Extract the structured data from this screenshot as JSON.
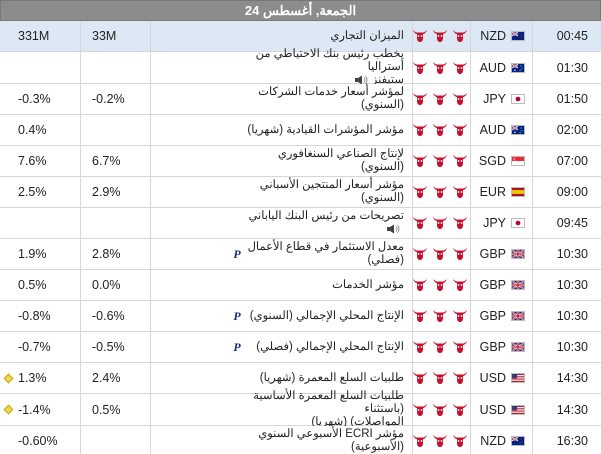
{
  "day_header": "الجمعة, أغسطس 24",
  "colors": {
    "bull_active": "#c8102e",
    "bull_inactive": "#d0d0d0"
  },
  "rows": [
    {
      "time": "00:45",
      "currency": "NZD",
      "flag": "nz-flag-icon",
      "importance": 3,
      "event": [
        "الميزان التجاري"
      ],
      "previous": "331M",
      "forecast": "33M",
      "prelim": false,
      "speech": false,
      "diamond": false
    },
    {
      "time": "01:30",
      "currency": "AUD",
      "flag": "au-flag-icon",
      "importance": 3,
      "event": [
        "يخطب رئيس بنك الاحتياطي من أستراليا",
        "ستيفنز"
      ],
      "previous": "",
      "forecast": "",
      "prelim": false,
      "speech": true,
      "diamond": false
    },
    {
      "time": "01:50",
      "currency": "JPY",
      "flag": "jp-flag-icon",
      "importance": 3,
      "event": [
        "لمؤشر أسعار خدمات الشركات (السنوي)"
      ],
      "previous": "-0.3%",
      "forecast": "-0.2%",
      "prelim": false,
      "speech": false,
      "diamond": false
    },
    {
      "time": "02:00",
      "currency": "AUD",
      "flag": "au-flag-icon",
      "importance": 3,
      "event": [
        "مؤشر المؤشرات القيادية (شهريا)"
      ],
      "previous": "0.4%",
      "forecast": "",
      "prelim": false,
      "speech": false,
      "diamond": false
    },
    {
      "time": "07:00",
      "currency": "SGD",
      "flag": "sg-flag-icon",
      "importance": 3,
      "event": [
        "لإنتاج الصناعي السنغافوري (السنوي)"
      ],
      "previous": "7.6%",
      "forecast": "6.7%",
      "prelim": false,
      "speech": false,
      "diamond": false
    },
    {
      "time": "09:00",
      "currency": "EUR",
      "flag": "es-flag-icon",
      "importance": 3,
      "event": [
        "مؤشر أسعار المنتجين الأسباني (السنوي)"
      ],
      "previous": "2.5%",
      "forecast": "2.9%",
      "prelim": false,
      "speech": false,
      "diamond": false
    },
    {
      "time": "09:45",
      "currency": "JPY",
      "flag": "jp-flag-icon",
      "importance": 3,
      "event": [
        "تصريحات من رئيس البنك الياباني"
      ],
      "previous": "",
      "forecast": "",
      "prelim": false,
      "speech": true,
      "diamond": false
    },
    {
      "time": "10:30",
      "currency": "GBP",
      "flag": "gb-flag-icon",
      "importance": 3,
      "event": [
        "معدل الاستثمار في قطاع الأعمال (فصلي)"
      ],
      "previous": "1.9%",
      "forecast": "2.8%",
      "prelim": true,
      "speech": false,
      "diamond": false
    },
    {
      "time": "10:30",
      "currency": "GBP",
      "flag": "gb-flag-icon",
      "importance": 3,
      "event": [
        "مؤشر الخدمات"
      ],
      "previous": "0.5%",
      "forecast": "0.0%",
      "prelim": false,
      "speech": false,
      "diamond": false
    },
    {
      "time": "10:30",
      "currency": "GBP",
      "flag": "gb-flag-icon",
      "importance": 3,
      "event": [
        "الإنتاج المحلي الإجمالي (السنوي)"
      ],
      "previous": "-0.8%",
      "forecast": "-0.6%",
      "prelim": true,
      "speech": false,
      "diamond": false
    },
    {
      "time": "10:30",
      "currency": "GBP",
      "flag": "gb-flag-icon",
      "importance": 3,
      "event": [
        "الإنتاج المحلي الإجمالي (فصلي)"
      ],
      "previous": "-0.7%",
      "forecast": "-0.5%",
      "prelim": true,
      "speech": false,
      "diamond": false
    },
    {
      "time": "14:30",
      "currency": "USD",
      "flag": "us-flag-icon",
      "importance": 3,
      "event": [
        "طلبيات السلع المعمرة (شهريا)"
      ],
      "previous": "1.3%",
      "forecast": "2.4%",
      "prelim": false,
      "speech": false,
      "diamond": true
    },
    {
      "time": "14:30",
      "currency": "USD",
      "flag": "us-flag-icon",
      "importance": 3,
      "event": [
        "طلبيات السلع المعمرة الأساسية (باستثناء",
        "المواصلات) (شهريا)"
      ],
      "previous": "-1.4%",
      "forecast": "0.5%",
      "prelim": false,
      "speech": false,
      "diamond": true
    },
    {
      "time": "16:30",
      "currency": "NZD",
      "flag": "nz-flag-icon",
      "importance": 3,
      "event": [
        "مؤشر ECRI الأسبوعي السنوي (الأسبوعية)"
      ],
      "previous": "-0.60%",
      "forecast": "",
      "prelim": false,
      "speech": false,
      "diamond": false
    }
  ],
  "prelim_mark": "P"
}
